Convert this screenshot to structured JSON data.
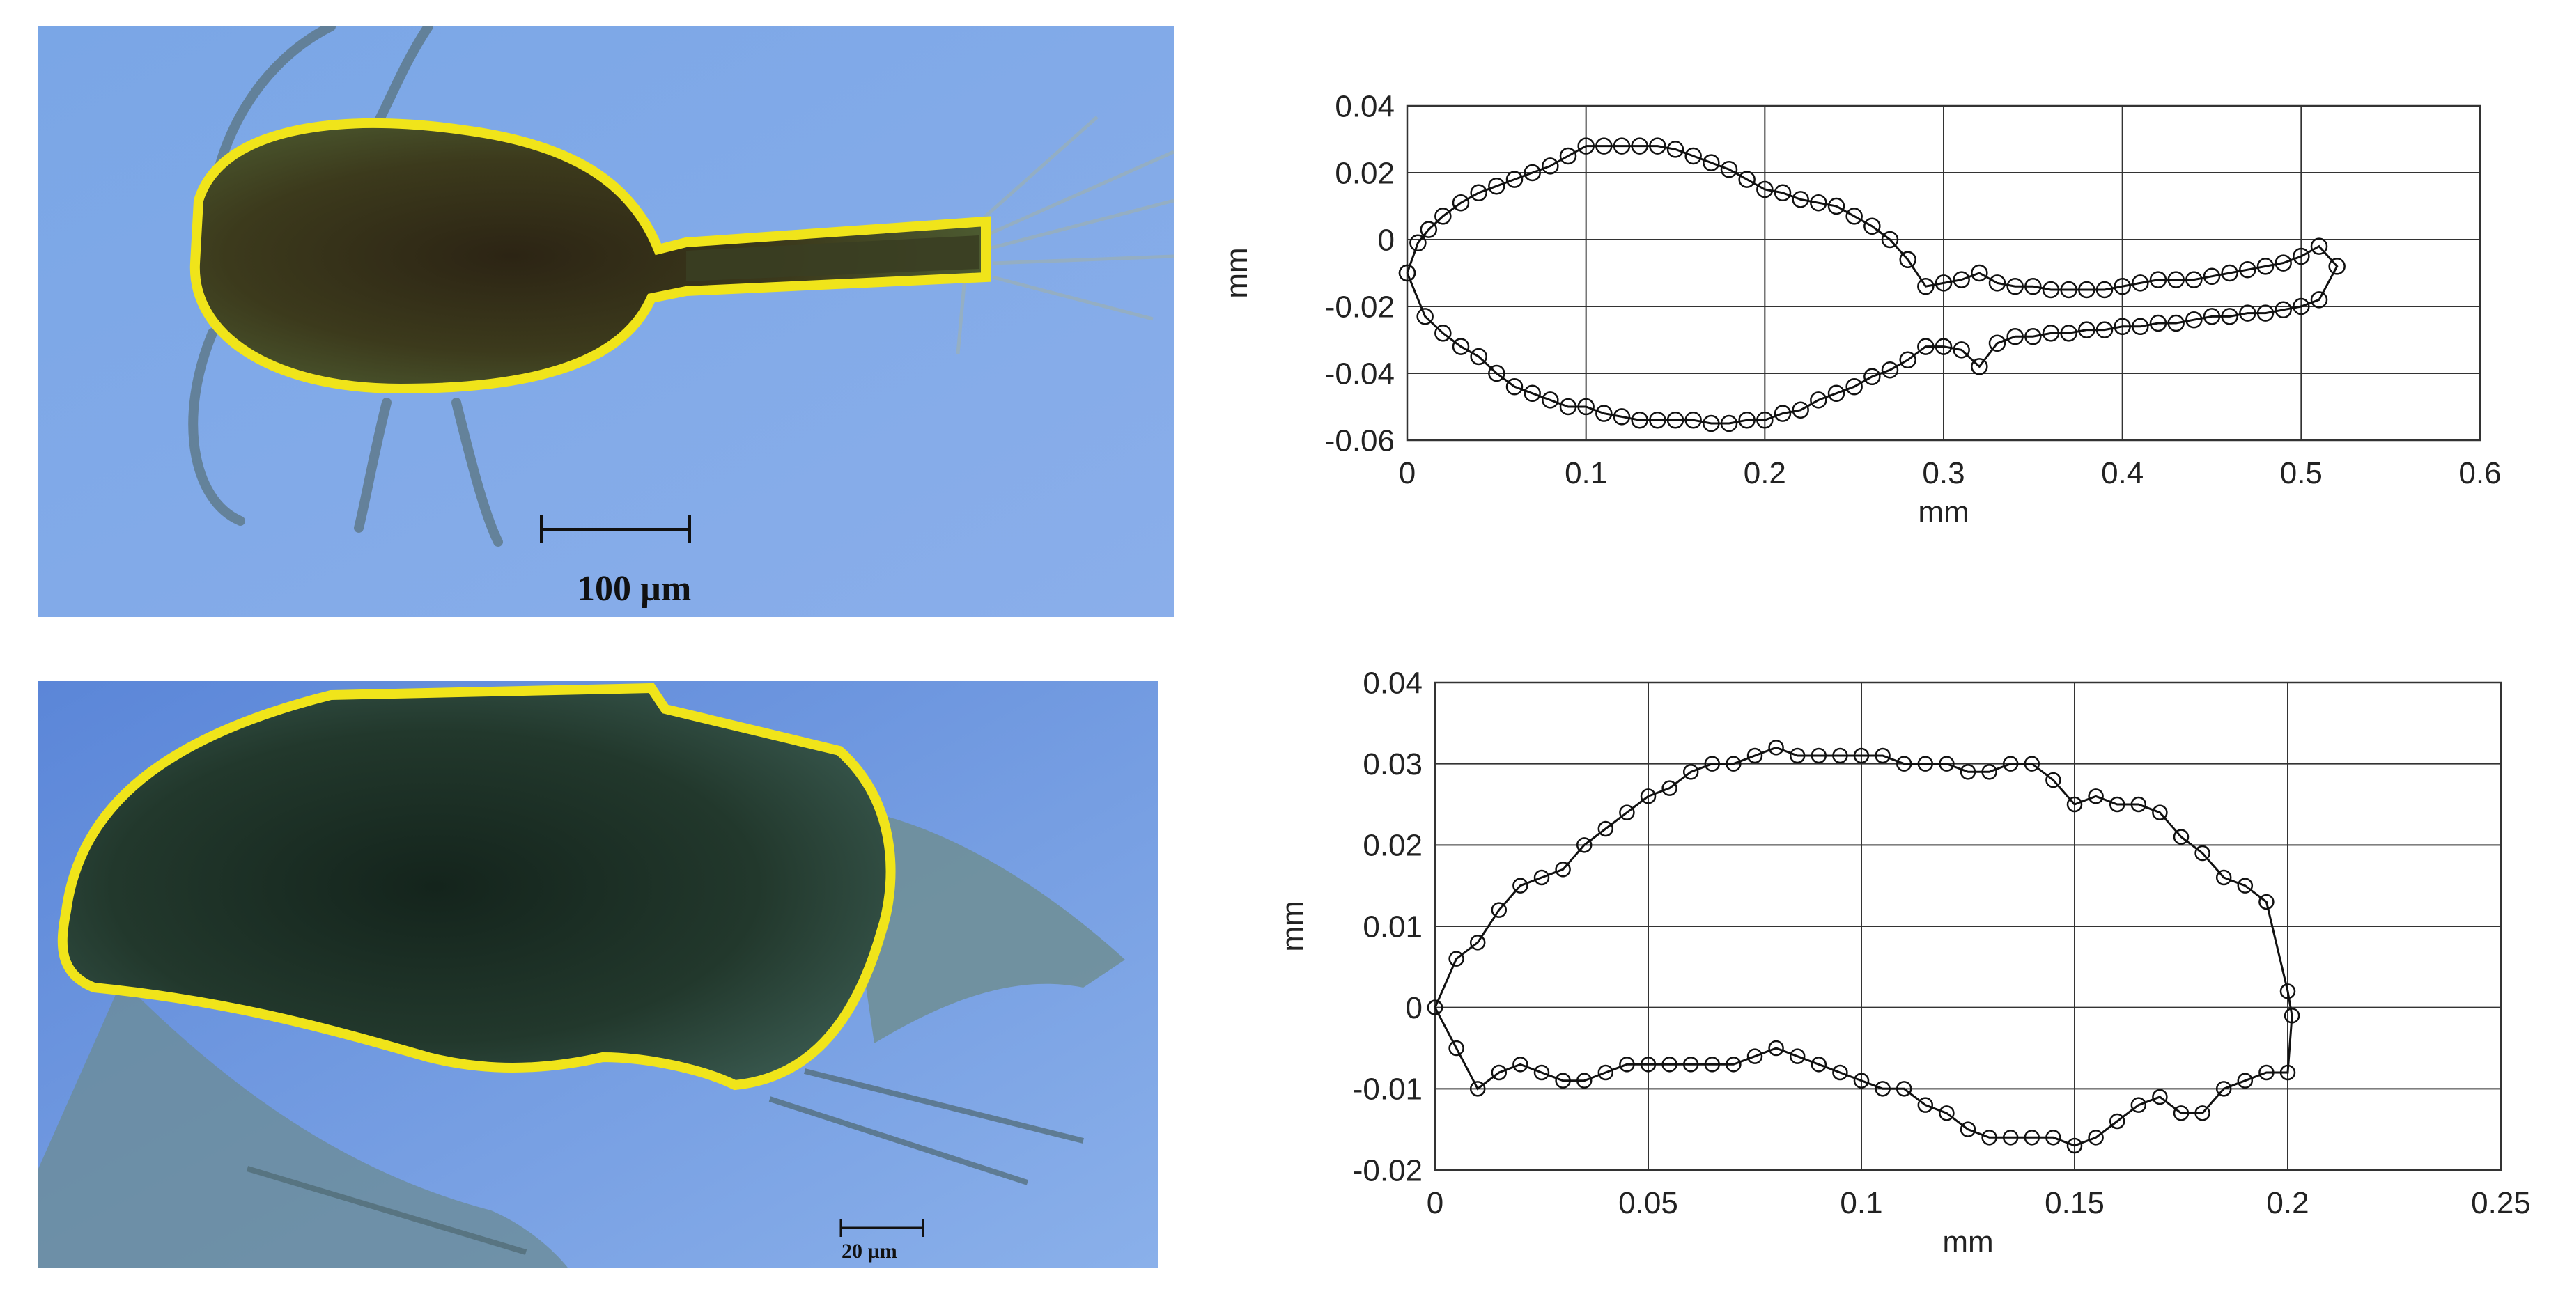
{
  "figure": {
    "scale_bars": {
      "top": "100 µm",
      "bottom": "20 µm"
    }
  },
  "chart_data": [
    {
      "type": "line",
      "title": "",
      "xlabel": "mm",
      "ylabel": "mm",
      "xlim": [
        0,
        0.6
      ],
      "ylim": [
        -0.06,
        0.04
      ],
      "xticks": [
        0,
        0.1,
        0.2,
        0.3,
        0.4,
        0.5,
        0.6
      ],
      "yticks": [
        -0.06,
        -0.04,
        -0.02,
        0,
        0.02,
        0.04
      ],
      "xtick_labels": [
        "0",
        "0.1",
        "0.2",
        "0.3",
        "0.4",
        "0.5",
        "0.6"
      ],
      "ytick_labels": [
        "-0.06",
        "-0.04",
        "-0.02",
        "0",
        "0.02",
        "0.04"
      ],
      "grid": true,
      "marker": "open-circle",
      "series": [
        {
          "points": [
            [
              0.0,
              -0.01
            ],
            [
              0.006,
              -0.001
            ],
            [
              0.012,
              0.003
            ],
            [
              0.02,
              0.007
            ],
            [
              0.03,
              0.011
            ],
            [
              0.04,
              0.014
            ],
            [
              0.05,
              0.016
            ],
            [
              0.06,
              0.018
            ],
            [
              0.07,
              0.02
            ],
            [
              0.08,
              0.022
            ],
            [
              0.09,
              0.025
            ],
            [
              0.1,
              0.028
            ],
            [
              0.11,
              0.028
            ],
            [
              0.12,
              0.028
            ],
            [
              0.13,
              0.028
            ],
            [
              0.14,
              0.028
            ],
            [
              0.15,
              0.027
            ],
            [
              0.16,
              0.025
            ],
            [
              0.17,
              0.023
            ],
            [
              0.18,
              0.021
            ],
            [
              0.19,
              0.018
            ],
            [
              0.2,
              0.015
            ],
            [
              0.21,
              0.014
            ],
            [
              0.22,
              0.012
            ],
            [
              0.23,
              0.011
            ],
            [
              0.24,
              0.01
            ],
            [
              0.25,
              0.007
            ],
            [
              0.26,
              0.004
            ],
            [
              0.27,
              0.0
            ],
            [
              0.28,
              -0.006
            ],
            [
              0.29,
              -0.014
            ],
            [
              0.3,
              -0.013
            ],
            [
              0.31,
              -0.012
            ],
            [
              0.32,
              -0.01
            ],
            [
              0.33,
              -0.013
            ],
            [
              0.34,
              -0.014
            ],
            [
              0.35,
              -0.014
            ],
            [
              0.36,
              -0.015
            ],
            [
              0.37,
              -0.015
            ],
            [
              0.38,
              -0.015
            ],
            [
              0.39,
              -0.015
            ],
            [
              0.4,
              -0.014
            ],
            [
              0.41,
              -0.013
            ],
            [
              0.42,
              -0.012
            ],
            [
              0.43,
              -0.012
            ],
            [
              0.44,
              -0.012
            ],
            [
              0.45,
              -0.011
            ],
            [
              0.46,
              -0.01
            ],
            [
              0.47,
              -0.009
            ],
            [
              0.48,
              -0.008
            ],
            [
              0.49,
              -0.007
            ],
            [
              0.5,
              -0.005
            ],
            [
              0.51,
              -0.002
            ],
            [
              0.52,
              -0.008
            ],
            [
              0.51,
              -0.018
            ],
            [
              0.5,
              -0.02
            ],
            [
              0.49,
              -0.021
            ],
            [
              0.48,
              -0.022
            ],
            [
              0.47,
              -0.022
            ],
            [
              0.46,
              -0.023
            ],
            [
              0.45,
              -0.023
            ],
            [
              0.44,
              -0.024
            ],
            [
              0.43,
              -0.025
            ],
            [
              0.42,
              -0.025
            ],
            [
              0.41,
              -0.026
            ],
            [
              0.4,
              -0.026
            ],
            [
              0.39,
              -0.027
            ],
            [
              0.38,
              -0.027
            ],
            [
              0.37,
              -0.028
            ],
            [
              0.36,
              -0.028
            ],
            [
              0.35,
              -0.029
            ],
            [
              0.34,
              -0.029
            ],
            [
              0.33,
              -0.031
            ],
            [
              0.32,
              -0.038
            ],
            [
              0.31,
              -0.033
            ],
            [
              0.3,
              -0.032
            ],
            [
              0.29,
              -0.032
            ],
            [
              0.28,
              -0.036
            ],
            [
              0.27,
              -0.039
            ],
            [
              0.26,
              -0.041
            ],
            [
              0.25,
              -0.044
            ],
            [
              0.24,
              -0.046
            ],
            [
              0.23,
              -0.048
            ],
            [
              0.22,
              -0.051
            ],
            [
              0.21,
              -0.052
            ],
            [
              0.2,
              -0.054
            ],
            [
              0.19,
              -0.054
            ],
            [
              0.18,
              -0.055
            ],
            [
              0.17,
              -0.055
            ],
            [
              0.16,
              -0.054
            ],
            [
              0.15,
              -0.054
            ],
            [
              0.14,
              -0.054
            ],
            [
              0.13,
              -0.054
            ],
            [
              0.12,
              -0.053
            ],
            [
              0.11,
              -0.052
            ],
            [
              0.1,
              -0.05
            ],
            [
              0.09,
              -0.05
            ],
            [
              0.08,
              -0.048
            ],
            [
              0.07,
              -0.046
            ],
            [
              0.06,
              -0.044
            ],
            [
              0.05,
              -0.04
            ],
            [
              0.04,
              -0.035
            ],
            [
              0.03,
              -0.032
            ],
            [
              0.02,
              -0.028
            ],
            [
              0.01,
              -0.023
            ],
            [
              0.0,
              -0.01
            ]
          ]
        }
      ]
    },
    {
      "type": "line",
      "title": "",
      "xlabel": "mm",
      "ylabel": "mm",
      "xlim": [
        0,
        0.25
      ],
      "ylim": [
        -0.02,
        0.04
      ],
      "xticks": [
        0,
        0.05,
        0.1,
        0.15,
        0.2,
        0.25
      ],
      "yticks": [
        -0.02,
        -0.01,
        0,
        0.01,
        0.02,
        0.03,
        0.04
      ],
      "xtick_labels": [
        "0",
        "0.05",
        "0.1",
        "0.15",
        "0.2",
        "0.25"
      ],
      "ytick_labels": [
        "-0.02",
        "-0.01",
        "0",
        "0.01",
        "0.02",
        "0.03",
        "0.04"
      ],
      "grid": true,
      "marker": "open-circle",
      "series": [
        {
          "points": [
            [
              0.0,
              0.0
            ],
            [
              0.005,
              0.006
            ],
            [
              0.01,
              0.008
            ],
            [
              0.015,
              0.012
            ],
            [
              0.02,
              0.015
            ],
            [
              0.025,
              0.016
            ],
            [
              0.03,
              0.017
            ],
            [
              0.035,
              0.02
            ],
            [
              0.04,
              0.022
            ],
            [
              0.045,
              0.024
            ],
            [
              0.05,
              0.026
            ],
            [
              0.055,
              0.027
            ],
            [
              0.06,
              0.029
            ],
            [
              0.065,
              0.03
            ],
            [
              0.07,
              0.03
            ],
            [
              0.075,
              0.031
            ],
            [
              0.08,
              0.032
            ],
            [
              0.085,
              0.031
            ],
            [
              0.09,
              0.031
            ],
            [
              0.095,
              0.031
            ],
            [
              0.1,
              0.031
            ],
            [
              0.105,
              0.031
            ],
            [
              0.11,
              0.03
            ],
            [
              0.115,
              0.03
            ],
            [
              0.12,
              0.03
            ],
            [
              0.125,
              0.029
            ],
            [
              0.13,
              0.029
            ],
            [
              0.135,
              0.03
            ],
            [
              0.14,
              0.03
            ],
            [
              0.145,
              0.028
            ],
            [
              0.15,
              0.025
            ],
            [
              0.155,
              0.026
            ],
            [
              0.16,
              0.025
            ],
            [
              0.165,
              0.025
            ],
            [
              0.17,
              0.024
            ],
            [
              0.175,
              0.021
            ],
            [
              0.18,
              0.019
            ],
            [
              0.185,
              0.016
            ],
            [
              0.19,
              0.015
            ],
            [
              0.195,
              0.013
            ],
            [
              0.2,
              0.002
            ],
            [
              0.201,
              -0.001
            ],
            [
              0.2,
              -0.008
            ],
            [
              0.195,
              -0.008
            ],
            [
              0.19,
              -0.009
            ],
            [
              0.185,
              -0.01
            ],
            [
              0.18,
              -0.013
            ],
            [
              0.175,
              -0.013
            ],
            [
              0.17,
              -0.011
            ],
            [
              0.165,
              -0.012
            ],
            [
              0.16,
              -0.014
            ],
            [
              0.155,
              -0.016
            ],
            [
              0.15,
              -0.017
            ],
            [
              0.145,
              -0.016
            ],
            [
              0.14,
              -0.016
            ],
            [
              0.135,
              -0.016
            ],
            [
              0.13,
              -0.016
            ],
            [
              0.125,
              -0.015
            ],
            [
              0.12,
              -0.013
            ],
            [
              0.115,
              -0.012
            ],
            [
              0.11,
              -0.01
            ],
            [
              0.105,
              -0.01
            ],
            [
              0.1,
              -0.009
            ],
            [
              0.095,
              -0.008
            ],
            [
              0.09,
              -0.007
            ],
            [
              0.085,
              -0.006
            ],
            [
              0.08,
              -0.005
            ],
            [
              0.075,
              -0.006
            ],
            [
              0.07,
              -0.007
            ],
            [
              0.065,
              -0.007
            ],
            [
              0.06,
              -0.007
            ],
            [
              0.055,
              -0.007
            ],
            [
              0.05,
              -0.007
            ],
            [
              0.045,
              -0.007
            ],
            [
              0.04,
              -0.008
            ],
            [
              0.035,
              -0.009
            ],
            [
              0.03,
              -0.009
            ],
            [
              0.025,
              -0.008
            ],
            [
              0.02,
              -0.007
            ],
            [
              0.015,
              -0.008
            ],
            [
              0.01,
              -0.01
            ],
            [
              0.005,
              -0.005
            ],
            [
              0.0,
              0.0
            ]
          ]
        }
      ]
    }
  ]
}
